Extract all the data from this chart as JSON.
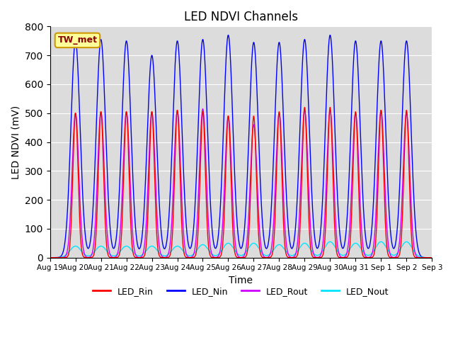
{
  "title": "LED NDVI Channels",
  "xlabel": "Time",
  "ylabel": "LED NDVI (mV)",
  "ylim": [
    0,
    800
  ],
  "background_color": "#dcdcdc",
  "annotation_text": "TW_met",
  "annotation_color": "#8b0000",
  "annotation_bg": "#ffff99",
  "legend_labels": [
    "LED_Rin",
    "LED_Nin",
    "LED_Rout",
    "LED_Nout"
  ],
  "legend_colors": [
    "#ff0000",
    "#0000ff",
    "#cc00ff",
    "#00e5ff"
  ],
  "series_colors": {
    "LED_Rin": "#ff0000",
    "LED_Nin": "#0000ff",
    "LED_Rout": "#cc00ff",
    "LED_Nout": "#00e5ff"
  },
  "peak_positions_days": [
    1.0,
    2.0,
    3.0,
    4.0,
    5.0,
    6.0,
    7.0,
    8.0,
    9.0,
    10.0,
    11.0,
    12.0,
    13.0,
    14.0
  ],
  "Nin_peaks": [
    750,
    755,
    750,
    700,
    750,
    755,
    770,
    745,
    745,
    755,
    770,
    750,
    750,
    750
  ],
  "Rin_peaks": [
    500,
    505,
    505,
    505,
    510,
    505,
    490,
    490,
    505,
    520,
    520,
    505,
    510,
    510
  ],
  "Rout_peaks": [
    500,
    505,
    505,
    505,
    510,
    515,
    490,
    460,
    500,
    510,
    510,
    500,
    510,
    500
  ],
  "Nout_peaks": [
    40,
    40,
    40,
    40,
    40,
    45,
    50,
    50,
    45,
    50,
    55,
    50,
    55,
    55
  ],
  "sigma_Nin": 0.18,
  "sigma_Rin": 0.1,
  "sigma_Rout": 0.13,
  "sigma_Nout": 0.22,
  "x_tick_days": [
    0,
    1,
    2,
    3,
    4,
    5,
    6,
    7,
    8,
    9,
    10,
    11,
    12,
    13,
    14,
    15
  ],
  "x_tick_labels": [
    "Aug 19",
    "Aug 20",
    "Aug 21",
    "Aug 22",
    "Aug 23",
    "Aug 24",
    "Aug 25",
    "Aug 26",
    "Aug 27",
    "Aug 28",
    "Aug 29",
    "Aug 30",
    "Aug 31",
    "Sep 1",
    "Sep 2",
    "Sep 3"
  ]
}
